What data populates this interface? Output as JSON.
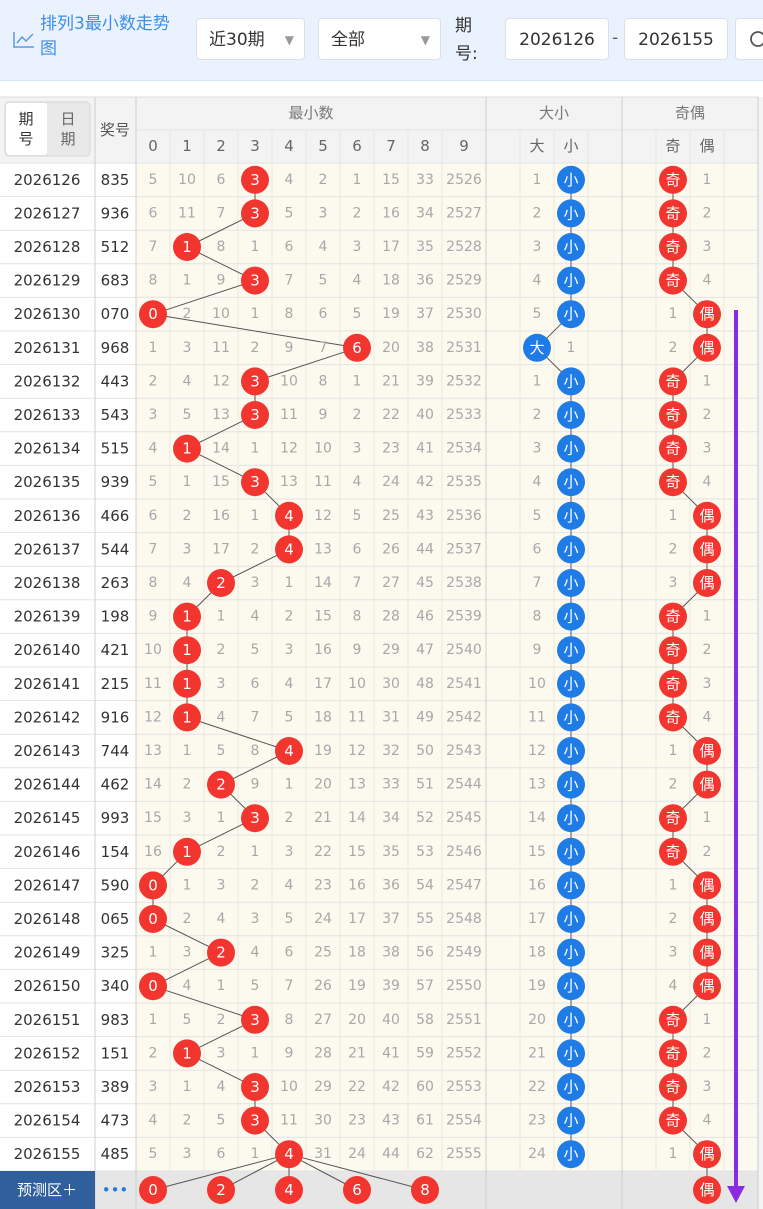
{
  "header": {
    "title": "排列3最小数走势图",
    "range_select": "近30期",
    "type_select": "全部",
    "issue_label": "期号:",
    "issue_from": "2026126",
    "separator": "-",
    "issue_to": "2026155"
  },
  "table": {
    "col_issue": "期号",
    "col_date": "日期",
    "col_number": "奖号",
    "group_min": "最小数",
    "min_digits": [
      "0",
      "1",
      "2",
      "3",
      "4",
      "5",
      "6",
      "7",
      "8",
      "9"
    ],
    "group_size": "大小",
    "size_labels": [
      "大",
      "小"
    ],
    "group_parity": "奇偶",
    "parity_labels": [
      "奇",
      "偶"
    ],
    "rows": [
      {
        "issue": "2026126",
        "number": "835",
        "min": [
          "5",
          "10",
          "6",
          "3",
          "4",
          "2",
          "1",
          "15",
          "33",
          "2526"
        ],
        "size": [
          "1",
          "小"
        ],
        "parity": [
          "奇",
          "1"
        ]
      },
      {
        "issue": "2026127",
        "number": "936",
        "min": [
          "6",
          "11",
          "7",
          "3",
          "5",
          "3",
          "2",
          "16",
          "34",
          "2527"
        ],
        "size": [
          "2",
          "小"
        ],
        "parity": [
          "奇",
          "2"
        ]
      },
      {
        "issue": "2026128",
        "number": "512",
        "min": [
          "7",
          "1",
          "8",
          "1",
          "6",
          "4",
          "3",
          "17",
          "35",
          "2528"
        ],
        "size": [
          "3",
          "小"
        ],
        "parity": [
          "奇",
          "3"
        ]
      },
      {
        "issue": "2026129",
        "number": "683",
        "min": [
          "8",
          "1",
          "9",
          "3",
          "7",
          "5",
          "4",
          "18",
          "36",
          "2529"
        ],
        "size": [
          "4",
          "小"
        ],
        "parity": [
          "奇",
          "4"
        ]
      },
      {
        "issue": "2026130",
        "number": "070",
        "min": [
          "0",
          "2",
          "10",
          "1",
          "8",
          "6",
          "5",
          "19",
          "37",
          "2530"
        ],
        "size": [
          "5",
          "小"
        ],
        "parity": [
          "1",
          "偶"
        ]
      },
      {
        "issue": "2026131",
        "number": "968",
        "min": [
          "1",
          "3",
          "11",
          "2",
          "9",
          "7",
          "6",
          "20",
          "38",
          "2531"
        ],
        "size": [
          "大",
          "1"
        ],
        "parity": [
          "2",
          "偶"
        ]
      },
      {
        "issue": "2026132",
        "number": "443",
        "min": [
          "2",
          "4",
          "12",
          "3",
          "10",
          "8",
          "1",
          "21",
          "39",
          "2532"
        ],
        "size": [
          "1",
          "小"
        ],
        "parity": [
          "奇",
          "1"
        ]
      },
      {
        "issue": "2026133",
        "number": "543",
        "min": [
          "3",
          "5",
          "13",
          "3",
          "11",
          "9",
          "2",
          "22",
          "40",
          "2533"
        ],
        "size": [
          "2",
          "小"
        ],
        "parity": [
          "奇",
          "2"
        ]
      },
      {
        "issue": "2026134",
        "number": "515",
        "min": [
          "4",
          "1",
          "14",
          "1",
          "12",
          "10",
          "3",
          "23",
          "41",
          "2534"
        ],
        "size": [
          "3",
          "小"
        ],
        "parity": [
          "奇",
          "3"
        ]
      },
      {
        "issue": "2026135",
        "number": "939",
        "min": [
          "5",
          "1",
          "15",
          "3",
          "13",
          "11",
          "4",
          "24",
          "42",
          "2535"
        ],
        "size": [
          "4",
          "小"
        ],
        "parity": [
          "奇",
          "4"
        ]
      },
      {
        "issue": "2026136",
        "number": "466",
        "min": [
          "6",
          "2",
          "16",
          "1",
          "4",
          "12",
          "5",
          "25",
          "43",
          "2536"
        ],
        "size": [
          "5",
          "小"
        ],
        "parity": [
          "1",
          "偶"
        ]
      },
      {
        "issue": "2026137",
        "number": "544",
        "min": [
          "7",
          "3",
          "17",
          "2",
          "4",
          "13",
          "6",
          "26",
          "44",
          "2537"
        ],
        "size": [
          "6",
          "小"
        ],
        "parity": [
          "2",
          "偶"
        ]
      },
      {
        "issue": "2026138",
        "number": "263",
        "min": [
          "8",
          "4",
          "2",
          "3",
          "1",
          "14",
          "7",
          "27",
          "45",
          "2538"
        ],
        "size": [
          "7",
          "小"
        ],
        "parity": [
          "3",
          "偶"
        ]
      },
      {
        "issue": "2026139",
        "number": "198",
        "min": [
          "9",
          "1",
          "1",
          "4",
          "2",
          "15",
          "8",
          "28",
          "46",
          "2539"
        ],
        "size": [
          "8",
          "小"
        ],
        "parity": [
          "奇",
          "1"
        ]
      },
      {
        "issue": "2026140",
        "number": "421",
        "min": [
          "10",
          "1",
          "2",
          "5",
          "3",
          "16",
          "9",
          "29",
          "47",
          "2540"
        ],
        "size": [
          "9",
          "小"
        ],
        "parity": [
          "奇",
          "2"
        ]
      },
      {
        "issue": "2026141",
        "number": "215",
        "min": [
          "11",
          "1",
          "3",
          "6",
          "4",
          "17",
          "10",
          "30",
          "48",
          "2541"
        ],
        "size": [
          "10",
          "小"
        ],
        "parity": [
          "奇",
          "3"
        ]
      },
      {
        "issue": "2026142",
        "number": "916",
        "min": [
          "12",
          "1",
          "4",
          "7",
          "5",
          "18",
          "11",
          "31",
          "49",
          "2542"
        ],
        "size": [
          "11",
          "小"
        ],
        "parity": [
          "奇",
          "4"
        ]
      },
      {
        "issue": "2026143",
        "number": "744",
        "min": [
          "13",
          "1",
          "5",
          "8",
          "4",
          "19",
          "12",
          "32",
          "50",
          "2543"
        ],
        "size": [
          "12",
          "小"
        ],
        "parity": [
          "1",
          "偶"
        ]
      },
      {
        "issue": "2026144",
        "number": "462",
        "min": [
          "14",
          "2",
          "2",
          "9",
          "1",
          "20",
          "13",
          "33",
          "51",
          "2544"
        ],
        "size": [
          "13",
          "小"
        ],
        "parity": [
          "2",
          "偶"
        ]
      },
      {
        "issue": "2026145",
        "number": "993",
        "min": [
          "15",
          "3",
          "1",
          "3",
          "2",
          "21",
          "14",
          "34",
          "52",
          "2545"
        ],
        "size": [
          "14",
          "小"
        ],
        "parity": [
          "奇",
          "1"
        ]
      },
      {
        "issue": "2026146",
        "number": "154",
        "min": [
          "16",
          "1",
          "2",
          "1",
          "3",
          "22",
          "15",
          "35",
          "53",
          "2546"
        ],
        "size": [
          "15",
          "小"
        ],
        "parity": [
          "奇",
          "2"
        ]
      },
      {
        "issue": "2026147",
        "number": "590",
        "min": [
          "0",
          "1",
          "3",
          "2",
          "4",
          "23",
          "16",
          "36",
          "54",
          "2547"
        ],
        "size": [
          "16",
          "小"
        ],
        "parity": [
          "1",
          "偶"
        ]
      },
      {
        "issue": "2026148",
        "number": "065",
        "min": [
          "0",
          "2",
          "4",
          "3",
          "5",
          "24",
          "17",
          "37",
          "55",
          "2548"
        ],
        "size": [
          "17",
          "小"
        ],
        "parity": [
          "2",
          "偶"
        ]
      },
      {
        "issue": "2026149",
        "number": "325",
        "min": [
          "1",
          "3",
          "2",
          "4",
          "6",
          "25",
          "18",
          "38",
          "56",
          "2549"
        ],
        "size": [
          "18",
          "小"
        ],
        "parity": [
          "3",
          "偶"
        ]
      },
      {
        "issue": "2026150",
        "number": "340",
        "min": [
          "0",
          "4",
          "1",
          "5",
          "7",
          "26",
          "19",
          "39",
          "57",
          "2550"
        ],
        "size": [
          "19",
          "小"
        ],
        "parity": [
          "4",
          "偶"
        ]
      },
      {
        "issue": "2026151",
        "number": "983",
        "min": [
          "1",
          "5",
          "2",
          "3",
          "8",
          "27",
          "20",
          "40",
          "58",
          "2551"
        ],
        "size": [
          "20",
          "小"
        ],
        "parity": [
          "奇",
          "1"
        ]
      },
      {
        "issue": "2026152",
        "number": "151",
        "min": [
          "2",
          "1",
          "3",
          "1",
          "9",
          "28",
          "21",
          "41",
          "59",
          "2552"
        ],
        "size": [
          "21",
          "小"
        ],
        "parity": [
          "奇",
          "2"
        ]
      },
      {
        "issue": "2026153",
        "number": "389",
        "min": [
          "3",
          "1",
          "4",
          "3",
          "10",
          "29",
          "22",
          "42",
          "60",
          "2553"
        ],
        "size": [
          "22",
          "小"
        ],
        "parity": [
          "奇",
          "3"
        ]
      },
      {
        "issue": "2026154",
        "number": "473",
        "min": [
          "4",
          "2",
          "5",
          "3",
          "11",
          "30",
          "23",
          "43",
          "61",
          "2554"
        ],
        "size": [
          "23",
          "小"
        ],
        "parity": [
          "奇",
          "4"
        ]
      },
      {
        "issue": "2026155",
        "number": "485",
        "min": [
          "5",
          "3",
          "6",
          "1",
          "4",
          "31",
          "24",
          "44",
          "62",
          "2555"
        ],
        "size": [
          "24",
          "小"
        ],
        "parity": [
          "1",
          "偶"
        ]
      }
    ],
    "forecast": {
      "label": "预测区＋",
      "more": "•••",
      "min": [
        "0",
        "2",
        "4",
        "6",
        "8"
      ],
      "parity": "偶"
    }
  }
}
